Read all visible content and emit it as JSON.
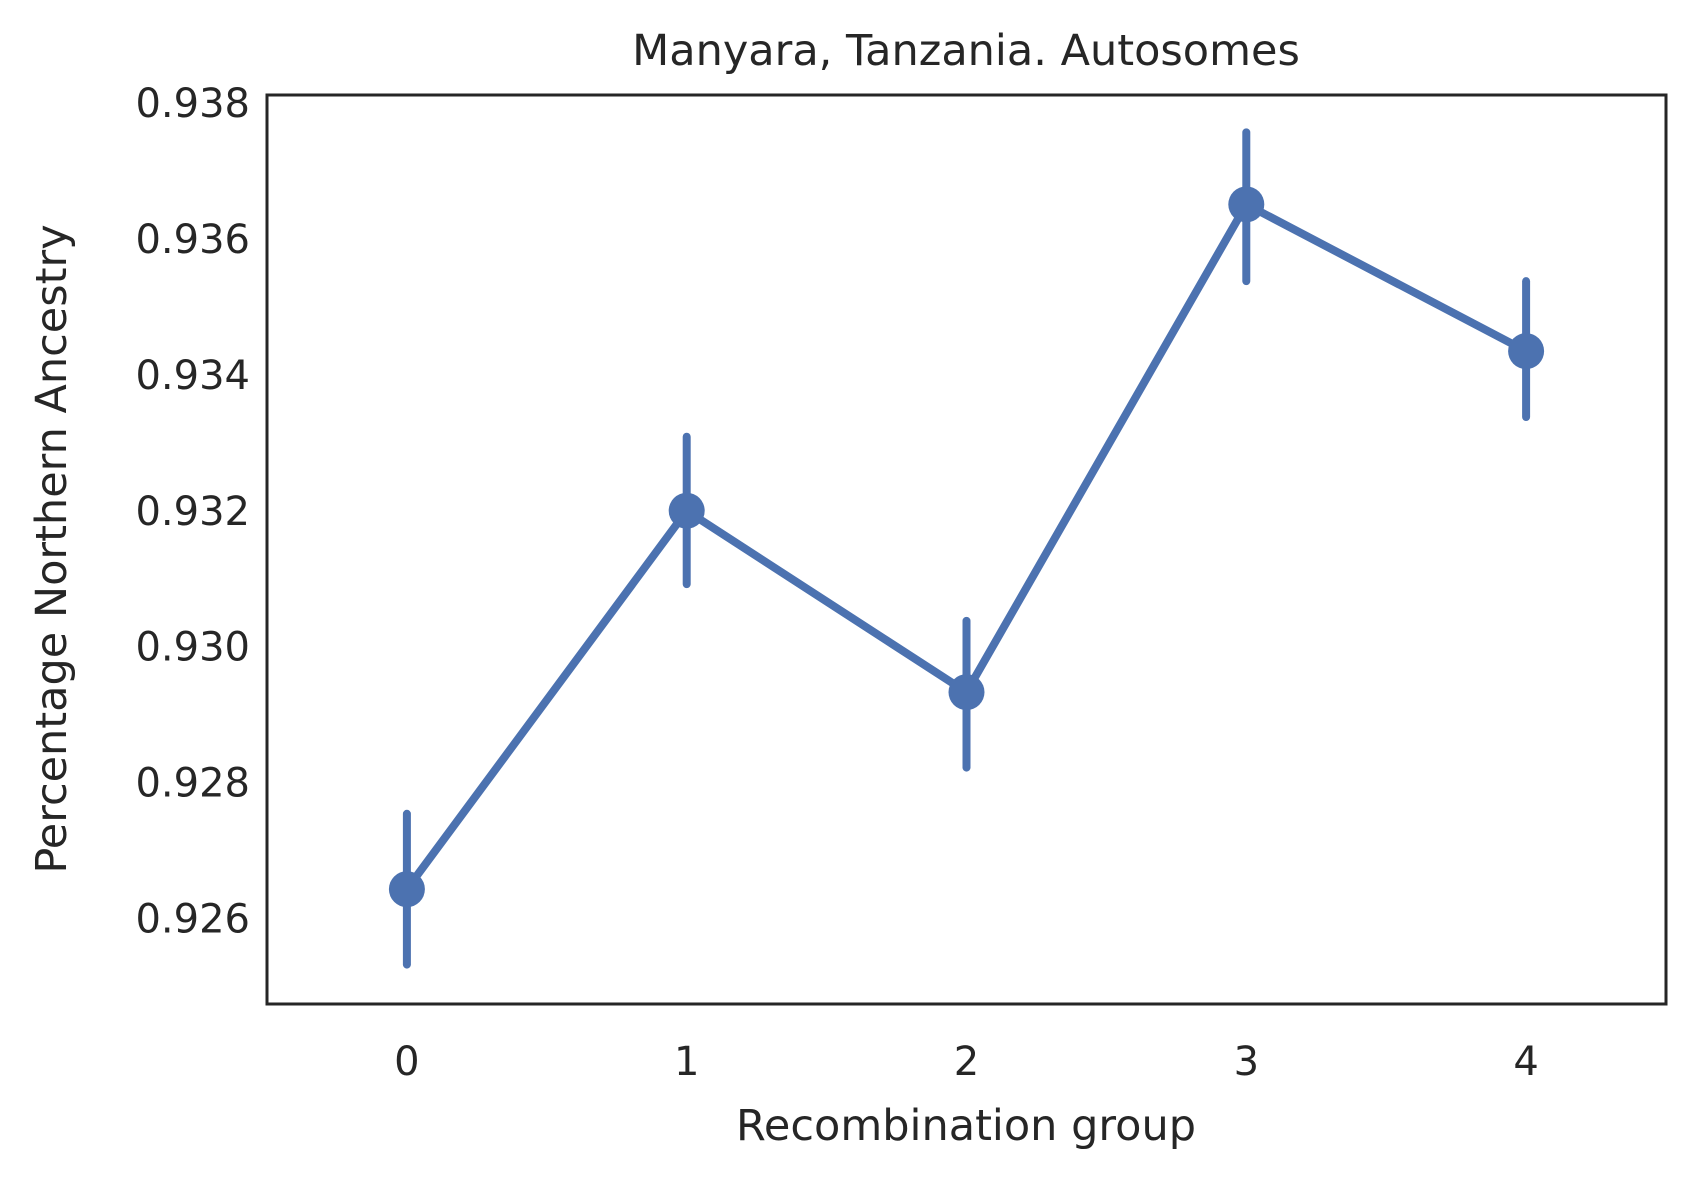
{
  "chart_data": {
    "type": "line",
    "title": "Manyara, Tanzania. Autosomes",
    "xlabel": "Recombination group",
    "ylabel": "Percentage Northern Ancestry",
    "categories": [
      "0",
      "1",
      "2",
      "3",
      "4"
    ],
    "series": [
      {
        "values": [
          0.92643,
          0.932,
          0.92933,
          0.93651,
          0.93435
        ],
        "ci_low": [
          0.92532,
          0.93092,
          0.92822,
          0.93538,
          0.93338
        ],
        "ci_high": [
          0.92754,
          0.93309,
          0.93038,
          0.93757,
          0.93538
        ],
        "color": "#4c72b0"
      }
    ],
    "yticks": [
      "0.926",
      "0.928",
      "0.930",
      "0.932",
      "0.934",
      "0.936",
      "0.938"
    ],
    "ytick_values": [
      0.926,
      0.928,
      0.93,
      0.932,
      0.934,
      0.936,
      0.938
    ],
    "ylim": [
      0.92474,
      0.93812
    ],
    "xlim": [
      -0.5,
      4.5
    ],
    "grid": false,
    "legend": "none"
  }
}
